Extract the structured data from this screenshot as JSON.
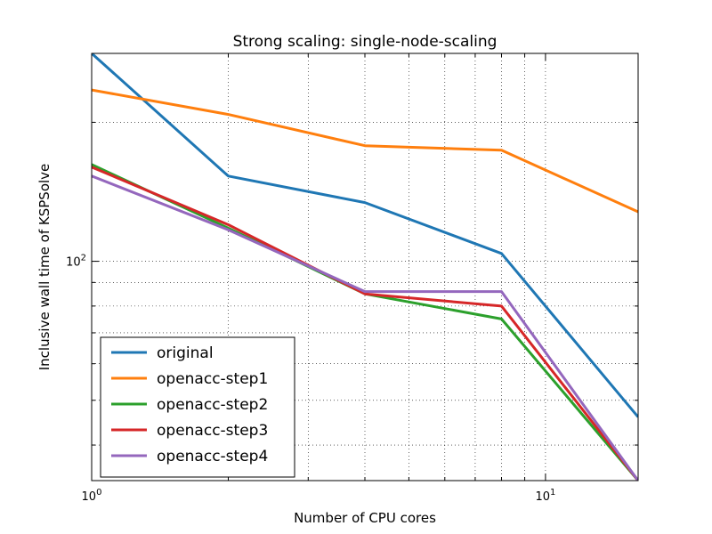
{
  "chart_data": {
    "type": "line",
    "title": "Strong scaling: single-node-scaling",
    "xlabel": "Number of CPU cores",
    "ylabel": "Inclusive wall time of KSPSolve",
    "xscale": "log",
    "yscale": "log",
    "xlim": [
      1,
      16
    ],
    "ylim": [
      33.5,
      282
    ],
    "x": [
      1,
      2,
      4,
      8,
      16
    ],
    "xticks": [
      {
        "value": 1,
        "base": "10",
        "exp": "0"
      },
      {
        "value": 10,
        "base": "10",
        "exp": "1"
      }
    ],
    "yticks": [
      {
        "value": 100,
        "base": "10",
        "exp": "2"
      }
    ],
    "grid": true,
    "legend_position": "lower-left",
    "series": [
      {
        "name": "original",
        "color": "#1f77b4",
        "values": [
          282,
          153,
          134,
          104,
          46
        ]
      },
      {
        "name": "openacc-step1",
        "color": "#ff7f0e",
        "values": [
          235,
          208,
          178,
          174,
          128
        ]
      },
      {
        "name": "openacc-step2",
        "color": "#2ca02c",
        "values": [
          162,
          118,
          85,
          75,
          33.5
        ]
      },
      {
        "name": "openacc-step3",
        "color": "#d62728",
        "values": [
          160,
          120,
          85,
          80,
          33.5
        ]
      },
      {
        "name": "openacc-step4",
        "color": "#9467bd",
        "values": [
          153,
          117,
          86,
          86,
          33.5
        ]
      }
    ]
  }
}
